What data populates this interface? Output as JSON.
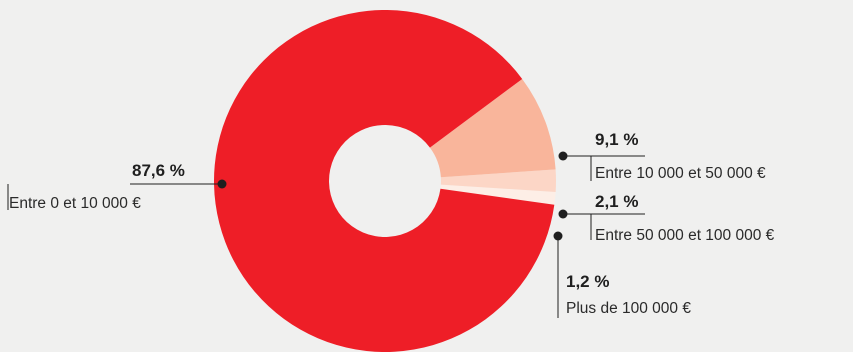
{
  "chart_data": {
    "type": "pie",
    "donut": true,
    "slices": [
      {
        "label": "Entre 0 et 10 000 €",
        "value": 87.6,
        "display": "87,6 %",
        "color": "#ee1e27"
      },
      {
        "label": "Entre 10 000 et 50 000 €",
        "value": 9.1,
        "display": "9,1 %",
        "color": "#f9b59b"
      },
      {
        "label": "Entre 50 000 et 100 000 €",
        "value": 2.1,
        "display": "2,1 %",
        "color": "#fcd6c6"
      },
      {
        "label": "Plus de 100 000 €",
        "value": 1.2,
        "display": "1,2 %",
        "color": "#fdeee6"
      }
    ]
  }
}
